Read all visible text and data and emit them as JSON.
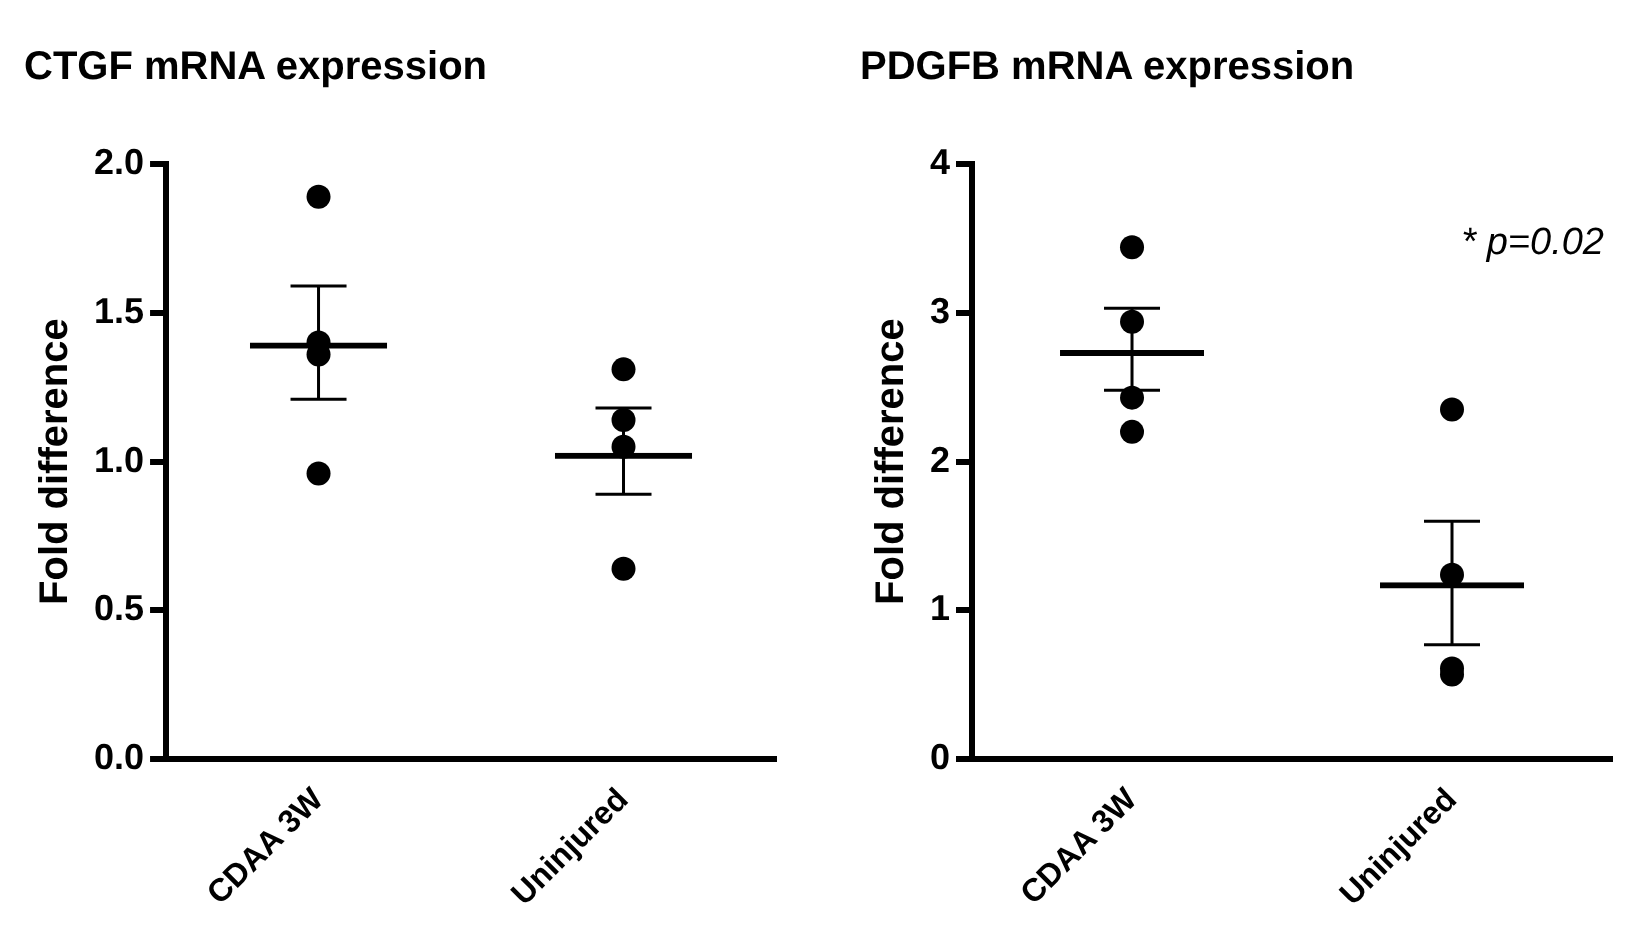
{
  "chart_data": [
    {
      "type": "scatter",
      "title": "CTGF mRNA expression",
      "ylabel": "Fold difference",
      "categories": [
        "CDAA 3W",
        "Uninjured"
      ],
      "series": [
        {
          "color": "#000000",
          "marker": "circle",
          "x": [
            "CDAA 3W",
            "CDAA 3W",
            "CDAA 3W",
            "CDAA 3W",
            "Uninjured",
            "Uninjured",
            "Uninjured",
            "Uninjured"
          ],
          "values": [
            1.89,
            1.4,
            1.36,
            0.96,
            1.31,
            1.14,
            1.05,
            0.64
          ]
        },
        {
          "type": "bar",
          "color": "#000000",
          "values": [
            1.4,
            1.03
          ],
          "errors": [
            [
              1.21,
              1.59
            ],
            [
              0.89,
              1.18
            ]
          ]
        }
      ],
      "ylim": [
        0,
        2
      ],
      "yticks": [
        {
          "value": 0,
          "label": "0.0"
        },
        0.5,
        {
          "value": 1,
          "label": "1.0"
        },
        1.5,
        {
          "value": 2,
          "label": "2.0"
        }
      ],
      "grid": false,
      "legend": false
    },
    {
      "type": "scatter",
      "title": "PDGFB mRNA expression",
      "ylabel": "Fold difference",
      "categories": [
        "CDAA 3W",
        "Uninjured"
      ],
      "series": [
        {
          "color": "#000000",
          "marker": "circle",
          "x": [
            "CDAA 3W",
            "CDAA 3W",
            "CDAA 3W",
            "CDAA 3W",
            "Uninjured",
            "Uninjured",
            "Uninjured",
            "Uninjured"
          ],
          "values": [
            3.44,
            2.94,
            2.43,
            2.2,
            2.35,
            1.24,
            0.61,
            0.57
          ]
        },
        {
          "type": "bar",
          "color": "#000000",
          "values": [
            2.75,
            1.19
          ],
          "errors": [
            [
              2.48,
              3.03
            ],
            [
              0.77,
              1.6
            ]
          ]
        }
      ],
      "ylim": [
        0,
        4
      ],
      "yticks": [
        0,
        1,
        2,
        3,
        4
      ],
      "grid": false,
      "legend": false,
      "annotations": [
        "* p=0.02"
      ]
    }
  ]
}
